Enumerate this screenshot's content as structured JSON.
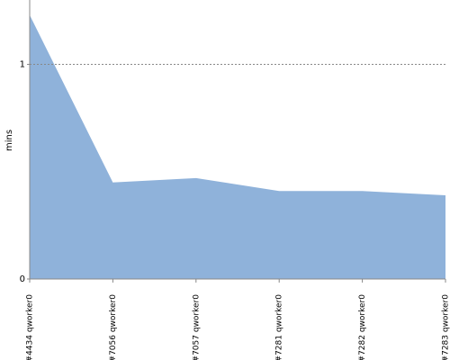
{
  "chart_data": {
    "type": "area",
    "y_label": "mins",
    "categories": [
      "#4434 qworker0",
      "#7056 qworker0",
      "#7057 qworker0",
      "#7281 qworker0",
      "#7282 qworker0",
      "#7283 qworker0"
    ],
    "values": [
      1.23,
      0.45,
      0.47,
      0.41,
      0.41,
      0.39
    ],
    "color": "#8fb2da",
    "ylim": [
      0,
      1.3
    ],
    "yticks": [
      0,
      1
    ],
    "grid": true
  }
}
